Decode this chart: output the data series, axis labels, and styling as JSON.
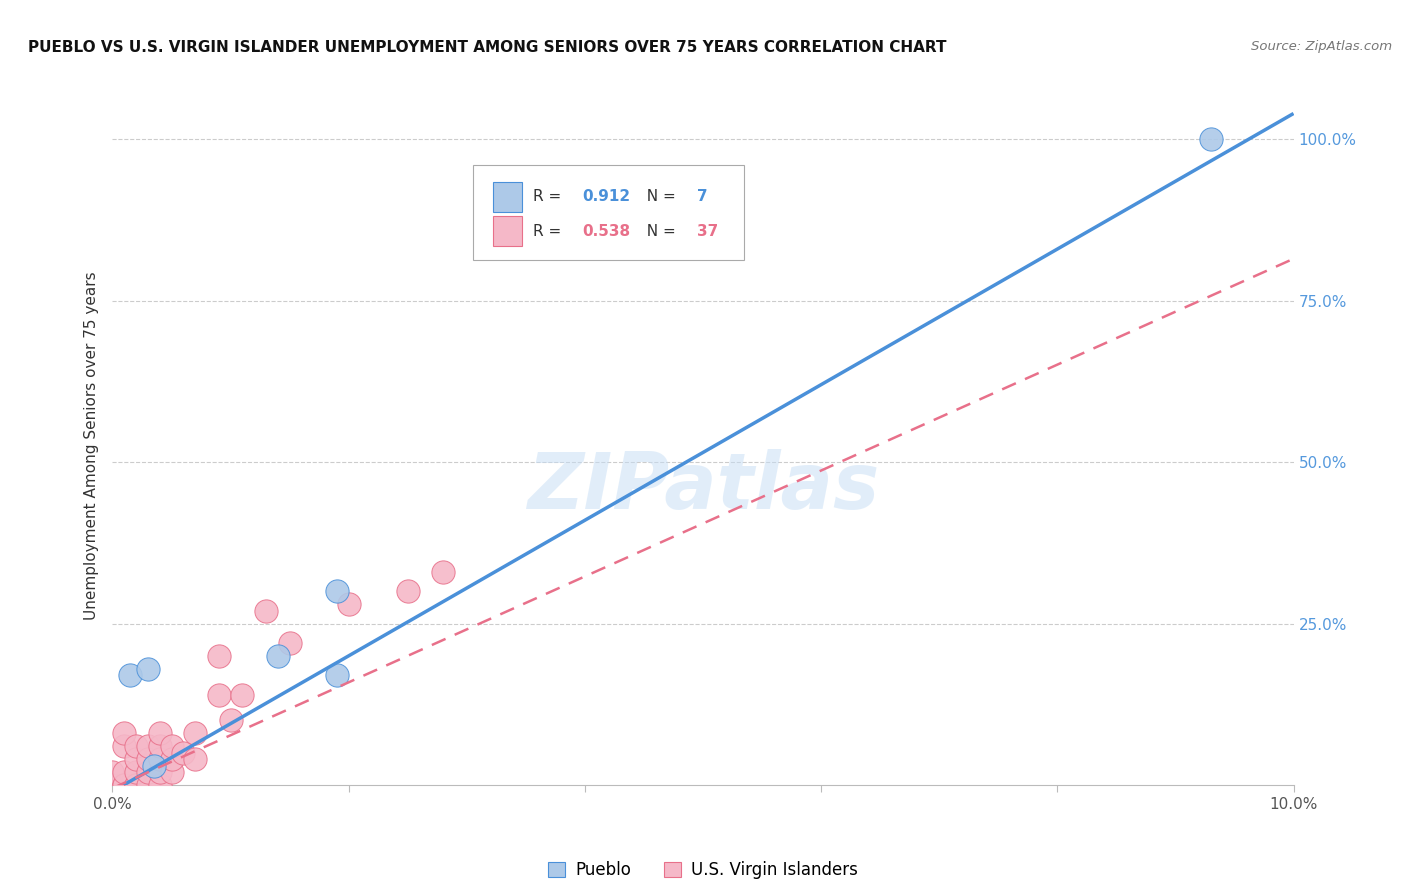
{
  "title": "PUEBLO VS U.S. VIRGIN ISLANDER UNEMPLOYMENT AMONG SENIORS OVER 75 YEARS CORRELATION CHART",
  "source": "Source: ZipAtlas.com",
  "ylabel": "Unemployment Among Seniors over 75 years",
  "xlim": [
    0.0,
    0.1
  ],
  "ylim": [
    0.0,
    1.05
  ],
  "xticks": [
    0.0,
    0.02,
    0.04,
    0.06,
    0.08,
    0.1
  ],
  "xticklabels": [
    "0.0%",
    "",
    "",
    "",
    "",
    "10.0%"
  ],
  "yticks": [
    0.0,
    0.25,
    0.5,
    0.75,
    1.0
  ],
  "yticklabels": [
    "",
    "25.0%",
    "50.0%",
    "75.0%",
    "100.0%"
  ],
  "pueblo_r": "0.912",
  "pueblo_n": "7",
  "virgin_r": "0.538",
  "virgin_n": "37",
  "pueblo_color": "#adc9e8",
  "virgin_color": "#f5b8c8",
  "pueblo_line_color": "#4a90d9",
  "virgin_line_color": "#e8708a",
  "watermark": "ZIPatlas",
  "pueblo_x": [
    0.0015,
    0.003,
    0.0035,
    0.014,
    0.019,
    0.019,
    0.093
  ],
  "pueblo_y": [
    0.17,
    0.18,
    0.03,
    0.2,
    0.17,
    0.3,
    1.0
  ],
  "virgin_x": [
    0.0,
    0.0,
    0.0,
    0.001,
    0.001,
    0.001,
    0.001,
    0.001,
    0.002,
    0.002,
    0.002,
    0.002,
    0.002,
    0.003,
    0.003,
    0.003,
    0.003,
    0.004,
    0.004,
    0.004,
    0.004,
    0.004,
    0.005,
    0.005,
    0.005,
    0.006,
    0.007,
    0.007,
    0.009,
    0.009,
    0.01,
    0.011,
    0.013,
    0.015,
    0.02,
    0.025,
    0.028
  ],
  "virgin_y": [
    0.0,
    0.0,
    0.02,
    0.0,
    0.0,
    0.02,
    0.06,
    0.08,
    0.0,
    0.0,
    0.02,
    0.04,
    0.06,
    0.0,
    0.02,
    0.04,
    0.06,
    0.0,
    0.02,
    0.04,
    0.06,
    0.08,
    0.02,
    0.04,
    0.06,
    0.05,
    0.04,
    0.08,
    0.14,
    0.2,
    0.1,
    0.14,
    0.27,
    0.22,
    0.28,
    0.3,
    0.33
  ],
  "pueblo_line_slope": 10.5,
  "pueblo_line_intercept": -0.01,
  "virgin_line_slope": 8.2,
  "virgin_line_intercept": -0.005,
  "background_color": "#ffffff",
  "grid_color": "#cccccc"
}
